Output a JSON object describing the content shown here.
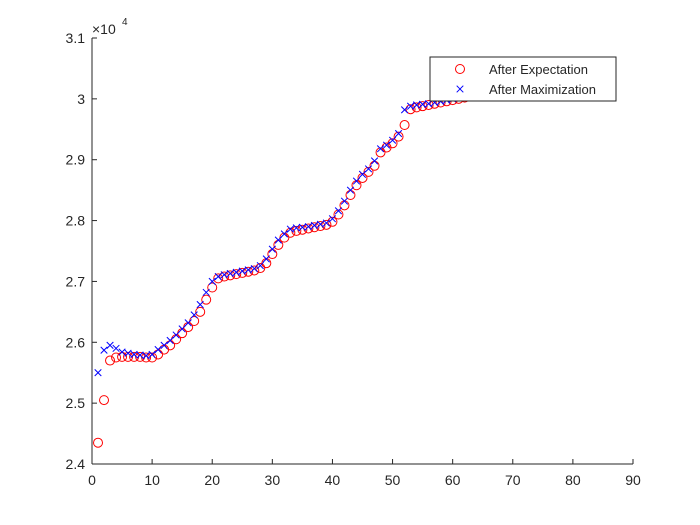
{
  "chart_data": {
    "type": "scatter",
    "title": "",
    "xlabel": "",
    "ylabel": "",
    "xlim": [
      0,
      90
    ],
    "ylim": [
      24000,
      31000
    ],
    "x_ticks": [
      0,
      10,
      20,
      30,
      40,
      50,
      60,
      70,
      80,
      90
    ],
    "x_tick_labels": [
      "0",
      "10",
      "20",
      "30",
      "40",
      "50",
      "60",
      "70",
      "80",
      "90"
    ],
    "y_ticks": [
      24000,
      25000,
      26000,
      27000,
      28000,
      29000,
      30000,
      31000
    ],
    "y_tick_labels": [
      "2.4",
      "2.5",
      "2.6",
      "2.7",
      "2.8",
      "2.9",
      "3",
      "3.1"
    ],
    "y_exponent_base": "×10",
    "y_exponent": "4",
    "grid": false,
    "legend_position": "top-right",
    "colors": {
      "expectation": "#ff0000",
      "maximization": "#0000ff",
      "axis": "#262626"
    },
    "series": [
      {
        "name": "After Expectation",
        "marker": "circle",
        "x": [
          1,
          2,
          3,
          4,
          5,
          6,
          7,
          8,
          9,
          10,
          11,
          12,
          13,
          14,
          15,
          16,
          17,
          18,
          19,
          20,
          21,
          22,
          23,
          24,
          25,
          26,
          27,
          28,
          29,
          30,
          31,
          32,
          33,
          34,
          35,
          36,
          37,
          38,
          39,
          40,
          41,
          42,
          43,
          44,
          45,
          46,
          47,
          48,
          49,
          50,
          51,
          52,
          53,
          54,
          55,
          56,
          57,
          58,
          59,
          60,
          61,
          62,
          63,
          64,
          65,
          66
        ],
        "y": [
          24350,
          25050,
          25700,
          25750,
          25760,
          25760,
          25760,
          25760,
          25750,
          25750,
          25800,
          25880,
          25950,
          26050,
          26150,
          26250,
          26350,
          26500,
          26700,
          26900,
          27050,
          27080,
          27100,
          27120,
          27140,
          27160,
          27180,
          27220,
          27300,
          27450,
          27600,
          27720,
          27800,
          27830,
          27850,
          27870,
          27890,
          27910,
          27930,
          27980,
          28100,
          28250,
          28420,
          28580,
          28700,
          28800,
          28900,
          29120,
          29200,
          29270,
          29380,
          29570,
          29830,
          29860,
          29880,
          29900,
          29920,
          29940,
          29960,
          29980,
          30000,
          30020,
          30040,
          30060,
          30070,
          30080
        ]
      },
      {
        "name": "After Maximization",
        "marker": "x",
        "x": [
          1,
          2,
          3,
          4,
          5,
          6,
          7,
          8,
          9,
          10,
          11,
          12,
          13,
          14,
          15,
          16,
          17,
          18,
          19,
          20,
          21,
          22,
          23,
          24,
          25,
          26,
          27,
          28,
          29,
          30,
          31,
          32,
          33,
          34,
          35,
          36,
          37,
          38,
          39,
          40,
          41,
          42,
          43,
          44,
          45,
          46,
          47,
          48,
          49,
          50,
          51,
          52,
          53,
          54,
          55,
          56,
          57,
          58,
          59,
          60,
          61,
          62,
          63,
          64,
          65,
          66
        ],
        "y": [
          25500,
          25870,
          25950,
          25900,
          25840,
          25820,
          25800,
          25790,
          25780,
          25800,
          25880,
          25950,
          26030,
          26120,
          26220,
          26320,
          26450,
          26620,
          26820,
          27000,
          27080,
          27110,
          27130,
          27150,
          27170,
          27190,
          27210,
          27260,
          27370,
          27530,
          27680,
          27780,
          27860,
          27880,
          27890,
          27900,
          27920,
          27940,
          27960,
          28030,
          28160,
          28320,
          28500,
          28650,
          28760,
          28850,
          28980,
          29180,
          29240,
          29320,
          29430,
          29820,
          29880,
          29900,
          29910,
          29920,
          29940,
          29960,
          29980,
          30000,
          30020,
          30040,
          30060,
          30080,
          30090,
          30100
        ]
      }
    ]
  }
}
